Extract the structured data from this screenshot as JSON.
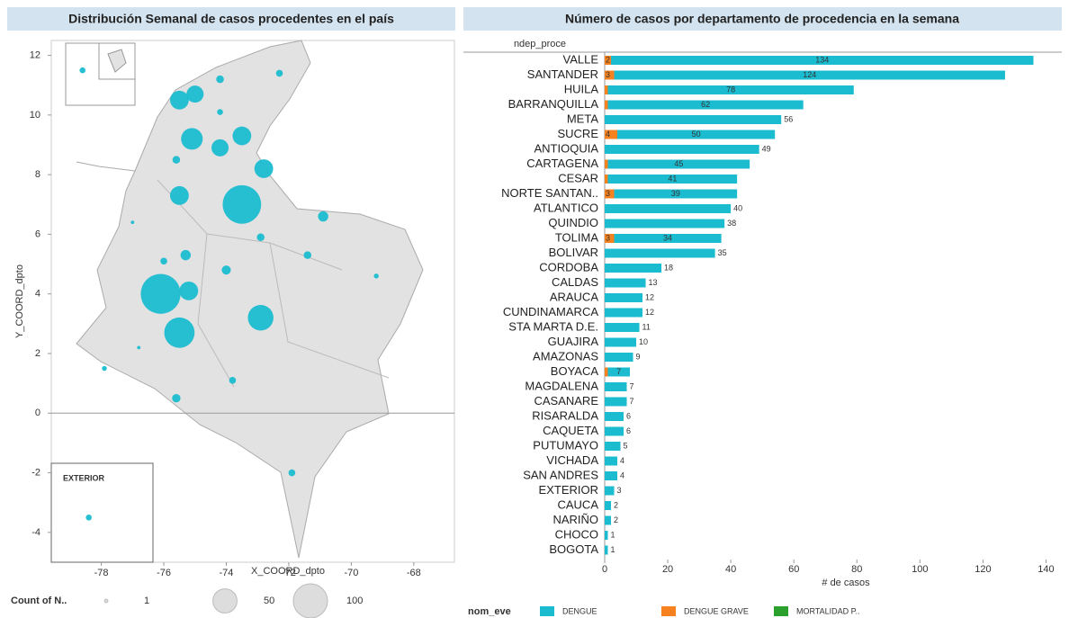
{
  "chart_data": [
    {
      "type": "bubble",
      "title": "Distribución Semanal de casos procedentes en el país",
      "x_label": "X_COORD_dpto",
      "y_label": "Y_COORD_dpto",
      "xlim": [
        -79.6,
        -66.7
      ],
      "xticks": [
        -78,
        -76,
        -74,
        -72,
        -70,
        -68
      ],
      "ylim": [
        -5,
        12.5
      ],
      "yticks": [
        -4,
        -2,
        0,
        2,
        4,
        6,
        8,
        10,
        12
      ],
      "color": "#1bbcd0",
      "x": [
        -78.6,
        -74.2,
        -72.3,
        -75.5,
        -75.0,
        -74.2,
        -75.1,
        -74.2,
        -73.5,
        -72.8,
        -75.6,
        -75.5,
        -73.5,
        -70.9,
        -72.9,
        -77.0,
        -76.0,
        -75.3,
        -74.0,
        -71.4,
        -69.2,
        -76.1,
        -75.2,
        -72.9,
        -75.5,
        -76.8,
        -77.9,
        -73.8,
        -75.6,
        -71.9,
        -78.4
      ],
      "y": [
        11.5,
        11.2,
        11.4,
        10.5,
        10.7,
        10.1,
        9.2,
        8.9,
        9.3,
        8.2,
        8.5,
        7.3,
        7.0,
        6.6,
        5.9,
        6.4,
        5.1,
        5.3,
        4.8,
        5.3,
        4.6,
        4.0,
        4.1,
        3.2,
        2.7,
        2.2,
        1.5,
        1.1,
        0.5,
        -2.0,
        -3.5
      ],
      "sizes": [
        3,
        5,
        4,
        30,
        25,
        3,
        40,
        25,
        30,
        30,
        5,
        30,
        127,
        9,
        5,
        1,
        4,
        9,
        7,
        5,
        2,
        136,
        30,
        56,
        79,
        1,
        2,
        4,
        6,
        4,
        3
      ],
      "annotation": "EXTERIOR",
      "size_legend": {
        "title": "Count of N..",
        "values": [
          1,
          50,
          100
        ]
      }
    },
    {
      "type": "bar",
      "orientation": "horizontal",
      "stacked": true,
      "title": "Número de casos por departamento de procedencia en la semana",
      "y_label": "ndep_proce",
      "x_label": "# de casos",
      "xlim": [
        0,
        145
      ],
      "xticks": [
        0,
        20,
        40,
        60,
        80,
        100,
        120,
        140
      ],
      "categories": [
        "VALLE",
        "SANTANDER",
        "HUILA",
        "BARRANQUILLA",
        "META",
        "SUCRE",
        "ANTIOQUIA",
        "CARTAGENA",
        "CESAR",
        "NORTE SANTAN..",
        "ATLANTICO",
        "QUINDIO",
        "TOLIMA",
        "BOLIVAR",
        "CORDOBA",
        "CALDAS",
        "ARAUCA",
        "CUNDINAMARCA",
        "STA MARTA D.E.",
        "GUAJIRA",
        "AMAZONAS",
        "BOYACA",
        "MAGDALENA",
        "CASANARE",
        "RISARALDA",
        "CAQUETA",
        "PUTUMAYO",
        "VICHADA",
        "SAN ANDRES",
        "EXTERIOR",
        "CAUCA",
        "NARIÑO",
        "CHOCO",
        "BOGOTA"
      ],
      "series": [
        {
          "name": "DENGUE",
          "color": "#1bbcd0",
          "values": [
            134,
            124,
            78,
            62,
            56,
            50,
            49,
            45,
            41,
            39,
            40,
            38,
            34,
            35,
            18,
            13,
            12,
            12,
            11,
            10,
            9,
            7,
            7,
            7,
            6,
            6,
            5,
            4,
            4,
            3,
            2,
            2,
            1,
            1
          ]
        },
        {
          "name": "DENGUE GRAVE",
          "color": "#f5821f",
          "values": [
            2,
            3,
            1,
            1,
            0,
            4,
            0,
            1,
            1,
            3,
            0,
            0,
            3,
            0,
            0,
            0,
            0,
            0,
            0,
            0,
            0,
            1,
            0,
            0,
            0,
            0,
            0,
            0,
            0,
            0,
            0,
            0,
            0,
            0
          ]
        },
        {
          "name": "MORTALIDAD P..",
          "color": "#2ca02c",
          "values": [
            0,
            0,
            0,
            0,
            0,
            0,
            0,
            0,
            0,
            0,
            0,
            0,
            0,
            0,
            0,
            0,
            0,
            0,
            0,
            0,
            0,
            0,
            0,
            0,
            0,
            0,
            0,
            0,
            0,
            0,
            0,
            0,
            0,
            0
          ]
        }
      ],
      "legend_title": "nom_eve",
      "legend": "bottom"
    }
  ]
}
